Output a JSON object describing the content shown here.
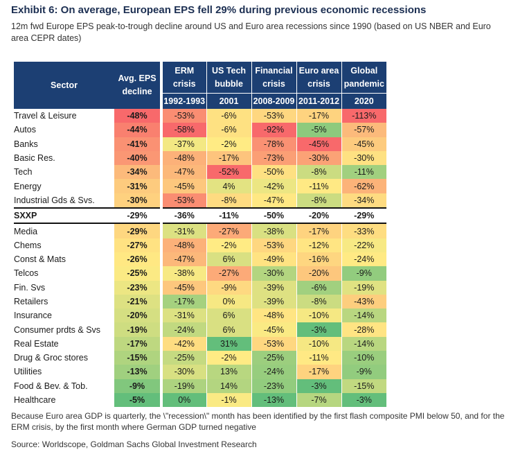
{
  "title": "Exhibit 6: On average, European EPS fell 29% during previous economic recessions",
  "subtitle": "12m fwd Europe EPS peak-to-trough decline around US and Euro area recessions since 1990 (based on US NBER and Euro area CEPR dates)",
  "footnote": "Because Euro area GDP is quarterly, the \\\"recession\\\" month has been identified by the first flash composite PMI below 50, and for the ERM crisis, by the first month where German GDP turned negative",
  "source": "Source: Worldscope, Goldman Sachs Global Investment Research",
  "chart_data": {
    "type": "table",
    "columns": [
      {
        "key": "sector",
        "line1": "Sector",
        "line2": "",
        "sub": ""
      },
      {
        "key": "avg",
        "line1": "Avg. EPS",
        "line2": "decline",
        "sub": ""
      },
      {
        "key": "erm",
        "line1": "ERM",
        "line2": "crisis",
        "sub": "1992-1993"
      },
      {
        "key": "tech",
        "line1": "US Tech",
        "line2": "bubble",
        "sub": "2001"
      },
      {
        "key": "fin",
        "line1": "Financial",
        "line2": "crisis",
        "sub": "2008-2009"
      },
      {
        "key": "euro",
        "line1": "Euro area",
        "line2": "crisis",
        "sub": "2011-2012"
      },
      {
        "key": "glob",
        "line1": "Global",
        "line2": "pandemic",
        "sub": "2020"
      }
    ],
    "rows": [
      {
        "sector": "Travel & Leisure",
        "values": [
          -48,
          -53,
          -6,
          -53,
          -17,
          -113
        ]
      },
      {
        "sector": "Autos",
        "values": [
          -44,
          -58,
          -6,
          -92,
          -5,
          -57
        ]
      },
      {
        "sector": "Banks",
        "values": [
          -41,
          -37,
          -2,
          -78,
          -45,
          -45
        ]
      },
      {
        "sector": "Basic Res.",
        "values": [
          -40,
          -48,
          -17,
          -73,
          -30,
          -30
        ]
      },
      {
        "sector": "Tech",
        "values": [
          -34,
          -47,
          -52,
          -50,
          -8,
          -11
        ]
      },
      {
        "sector": "Energy",
        "values": [
          -31,
          -45,
          4,
          -42,
          -11,
          -62
        ]
      },
      {
        "sector": "Industrial Gds & Svs.",
        "values": [
          -30,
          -53,
          -8,
          -47,
          -8,
          -34
        ]
      },
      {
        "sector": "SXXP",
        "values": [
          -29,
          -36,
          -11,
          -50,
          -20,
          -29
        ],
        "highlight": true
      },
      {
        "sector": "Media",
        "values": [
          -29,
          -31,
          -27,
          -38,
          -17,
          -33
        ]
      },
      {
        "sector": "Chems",
        "values": [
          -27,
          -48,
          -2,
          -53,
          -12,
          -22
        ]
      },
      {
        "sector": "Const & Mats",
        "values": [
          -26,
          -47,
          6,
          -49,
          -16,
          -24
        ]
      },
      {
        "sector": "Telcos",
        "values": [
          -25,
          -38,
          -27,
          -30,
          -20,
          -9
        ]
      },
      {
        "sector": "Fin. Svs",
        "values": [
          -23,
          -45,
          -9,
          -39,
          -6,
          -19
        ]
      },
      {
        "sector": "Retailers",
        "values": [
          -21,
          -17,
          0,
          -39,
          -8,
          -43
        ]
      },
      {
        "sector": "Insurance",
        "values": [
          -20,
          -31,
          6,
          -48,
          -10,
          -14
        ]
      },
      {
        "sector": "Consumer prdts & Svs",
        "values": [
          -19,
          -24,
          6,
          -45,
          -3,
          -28
        ]
      },
      {
        "sector": "Real Estate",
        "values": [
          -17,
          -42,
          31,
          -53,
          -10,
          -14
        ]
      },
      {
        "sector": "Drug & Groc stores",
        "values": [
          -15,
          -25,
          -2,
          -25,
          -11,
          -10
        ]
      },
      {
        "sector": "Utilities",
        "values": [
          -13,
          -30,
          13,
          -24,
          -17,
          -9
        ]
      },
      {
        "sector": "Food & Bev. & Tob.",
        "values": [
          -9,
          -19,
          14,
          -23,
          -3,
          -15
        ]
      },
      {
        "sector": "Healthcare",
        "values": [
          -5,
          0,
          -1,
          -13,
          -7,
          -3
        ]
      }
    ],
    "value_suffix": "%",
    "colors": {
      "header_bg": "#1c3f73",
      "worst": "#f8696b",
      "mid": "#ffeb84",
      "best": "#63be7b"
    }
  }
}
